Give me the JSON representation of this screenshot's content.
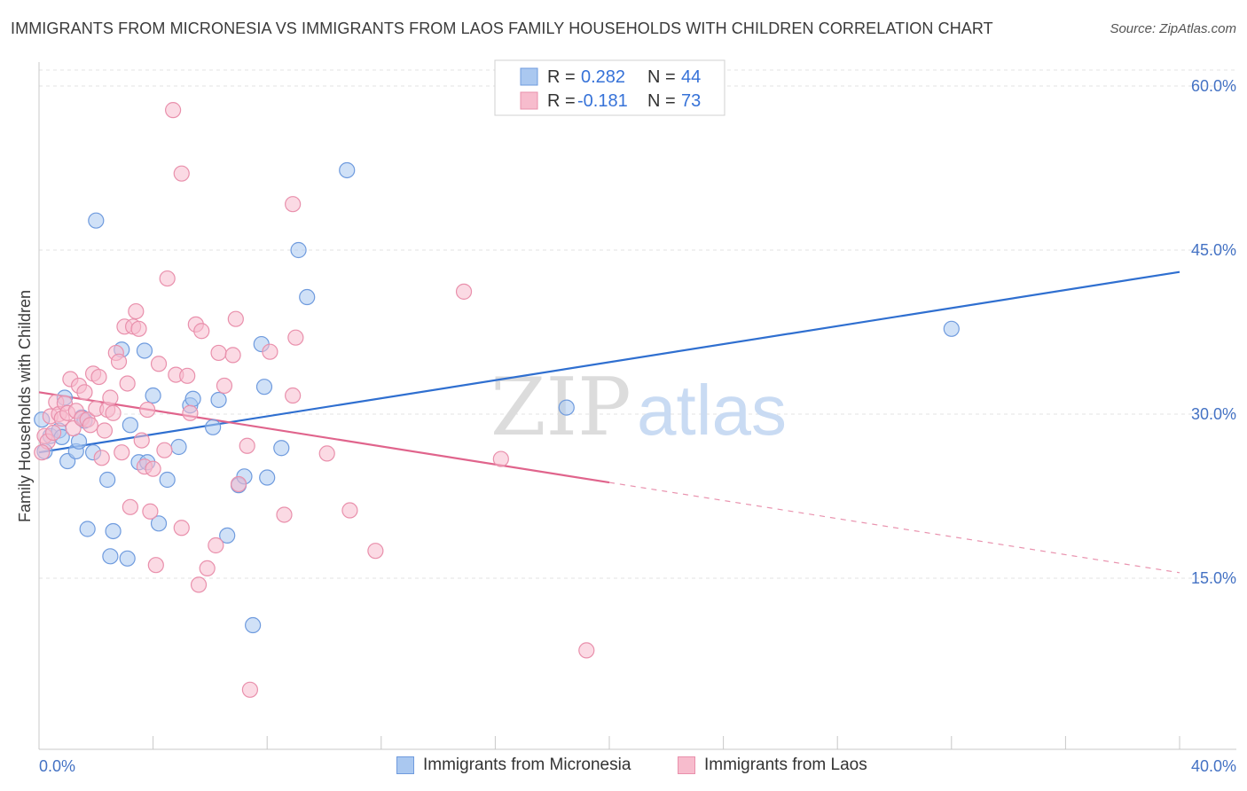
{
  "title": "IMMIGRANTS FROM MICRONESIA VS IMMIGRANTS FROM LAOS FAMILY HOUSEHOLDS WITH CHILDREN CORRELATION CHART",
  "source": "Source: ZipAtlas.com",
  "watermark": {
    "zip": "ZIP",
    "atlas": "atlas"
  },
  "legend_top": {
    "r_label": "R =",
    "n_label": "N =",
    "series": [
      {
        "r": "0.282",
        "n": "44"
      },
      {
        "r": "-0.181",
        "n": "73"
      }
    ]
  },
  "legend_bottom": [
    "Immigrants from Micronesia",
    "Immigrants from Laos"
  ],
  "colors": {
    "blue_fill": "#aac8f0",
    "blue_stroke": "#6f9bde",
    "blue_line": "#2f6fd0",
    "pink_fill": "#f7bccd",
    "pink_stroke": "#e990ac",
    "pink_line": "#e0648c",
    "tick": "#4472c4"
  },
  "chart_data": {
    "type": "scatter",
    "xlabel": "",
    "ylabel": "Family Households with Children",
    "xlim": [
      0,
      40
    ],
    "ylim": [
      0,
      62
    ],
    "x_tick_labels": [
      "0.0%",
      "40.0%"
    ],
    "y_ticks": [
      15,
      30,
      45,
      60
    ],
    "y_tick_labels": [
      "15.0%",
      "30.0%",
      "45.0%",
      "60.0%"
    ],
    "grid": true,
    "legend_position": "top-center",
    "series": [
      {
        "name": "Immigrants from Micronesia",
        "color": "#aac8f0",
        "trend": {
          "x": [
            0,
            40
          ],
          "y": [
            26.5,
            43.0
          ],
          "dashed_from": null
        },
        "points": [
          [
            0.2,
            26.6
          ],
          [
            0.4,
            28.0
          ],
          [
            0.7,
            28.5
          ],
          [
            0.8,
            27.9
          ],
          [
            0.9,
            31.5
          ],
          [
            1.0,
            25.7
          ],
          [
            1.3,
            26.6
          ],
          [
            1.4,
            27.5
          ],
          [
            1.5,
            29.7
          ],
          [
            1.6,
            29.4
          ],
          [
            1.7,
            19.5
          ],
          [
            1.9,
            26.5
          ],
          [
            2.0,
            47.7
          ],
          [
            2.4,
            24.0
          ],
          [
            2.5,
            17.0
          ],
          [
            2.6,
            19.3
          ],
          [
            2.9,
            35.9
          ],
          [
            3.1,
            16.8
          ],
          [
            3.2,
            29.0
          ],
          [
            3.5,
            25.6
          ],
          [
            3.7,
            35.8
          ],
          [
            3.8,
            25.6
          ],
          [
            4.0,
            31.7
          ],
          [
            4.2,
            20.0
          ],
          [
            4.5,
            24.0
          ],
          [
            4.9,
            27.0
          ],
          [
            5.3,
            30.8
          ],
          [
            5.4,
            31.4
          ],
          [
            6.1,
            28.8
          ],
          [
            6.3,
            31.3
          ],
          [
            6.6,
            18.9
          ],
          [
            7.0,
            23.5
          ],
          [
            7.2,
            24.3
          ],
          [
            7.5,
            10.7
          ],
          [
            7.8,
            36.4
          ],
          [
            7.9,
            32.5
          ],
          [
            8.0,
            24.2
          ],
          [
            8.5,
            26.9
          ],
          [
            9.1,
            45.0
          ],
          [
            9.4,
            40.7
          ],
          [
            10.8,
            52.3
          ],
          [
            18.5,
            30.6
          ],
          [
            32.0,
            37.8
          ],
          [
            0.1,
            29.5
          ]
        ]
      },
      {
        "name": "Immigrants from Laos",
        "color": "#f7bccd",
        "trend": {
          "x": [
            0,
            40
          ],
          "y": [
            32.0,
            15.5
          ],
          "dashed_from": 20
        },
        "points": [
          [
            0.2,
            28.0
          ],
          [
            0.3,
            27.5
          ],
          [
            0.4,
            29.8
          ],
          [
            0.5,
            28.3
          ],
          [
            0.6,
            31.1
          ],
          [
            0.7,
            30.0
          ],
          [
            0.8,
            29.6
          ],
          [
            0.9,
            31.0
          ],
          [
            1.0,
            30.1
          ],
          [
            1.1,
            33.2
          ],
          [
            1.2,
            28.7
          ],
          [
            1.3,
            30.3
          ],
          [
            1.4,
            32.6
          ],
          [
            1.5,
            29.6
          ],
          [
            1.7,
            29.5
          ],
          [
            1.8,
            29.0
          ],
          [
            1.9,
            33.7
          ],
          [
            2.0,
            30.5
          ],
          [
            2.1,
            33.4
          ],
          [
            2.2,
            26.0
          ],
          [
            2.4,
            30.4
          ],
          [
            2.5,
            31.5
          ],
          [
            2.6,
            30.1
          ],
          [
            2.7,
            35.6
          ],
          [
            2.8,
            34.8
          ],
          [
            2.9,
            26.5
          ],
          [
            3.0,
            38.0
          ],
          [
            3.1,
            32.8
          ],
          [
            3.2,
            21.5
          ],
          [
            3.3,
            38.0
          ],
          [
            3.4,
            39.4
          ],
          [
            3.5,
            37.8
          ],
          [
            3.6,
            27.6
          ],
          [
            3.7,
            25.2
          ],
          [
            3.8,
            30.4
          ],
          [
            3.9,
            21.1
          ],
          [
            4.0,
            25.0
          ],
          [
            4.1,
            16.2
          ],
          [
            4.2,
            34.6
          ],
          [
            4.4,
            26.7
          ],
          [
            4.5,
            42.4
          ],
          [
            4.7,
            57.8
          ],
          [
            4.8,
            33.6
          ],
          [
            5.0,
            19.6
          ],
          [
            5.0,
            52.0
          ],
          [
            5.2,
            33.5
          ],
          [
            5.3,
            30.1
          ],
          [
            5.5,
            38.2
          ],
          [
            5.6,
            14.4
          ],
          [
            5.7,
            37.6
          ],
          [
            5.9,
            15.9
          ],
          [
            6.2,
            18.0
          ],
          [
            6.3,
            35.6
          ],
          [
            6.5,
            32.6
          ],
          [
            6.8,
            35.4
          ],
          [
            6.9,
            38.7
          ],
          [
            7.0,
            23.6
          ],
          [
            7.3,
            27.1
          ],
          [
            7.4,
            4.8
          ],
          [
            8.1,
            35.7
          ],
          [
            8.6,
            20.8
          ],
          [
            8.9,
            49.2
          ],
          [
            8.9,
            31.7
          ],
          [
            9.0,
            37.0
          ],
          [
            10.1,
            26.4
          ],
          [
            10.9,
            21.2
          ],
          [
            11.8,
            17.5
          ],
          [
            14.9,
            41.2
          ],
          [
            16.2,
            25.9
          ],
          [
            19.2,
            8.4
          ],
          [
            0.1,
            26.5
          ],
          [
            1.6,
            32.0
          ],
          [
            2.3,
            28.5
          ]
        ]
      }
    ]
  }
}
